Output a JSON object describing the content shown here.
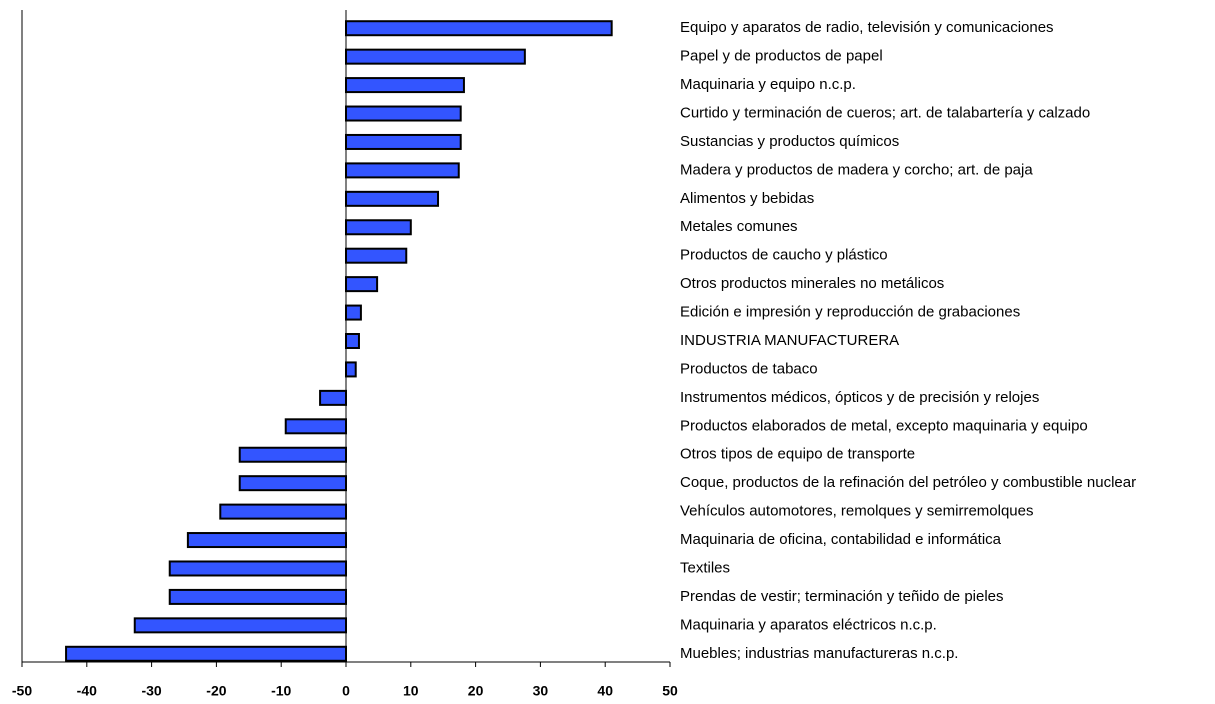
{
  "chart_data": {
    "type": "barh",
    "categories": [
      "Equipo y aparatos de radio, televisión y comunicaciones",
      "Papel y de productos de papel",
      "Maquinaria y equipo n.c.p.",
      "Curtido y terminación de cueros; art. de talabartería y calzado",
      "Sustancias y productos químicos",
      "Madera y productos de madera y corcho; art. de paja",
      "Alimentos y bebidas",
      "Metales comunes",
      "Productos de caucho y plástico",
      "Otros productos minerales no metálicos",
      "Edición e impresión y reproducción de grabaciones",
      "INDUSTRIA MANUFACTURERA",
      "Productos de tabaco",
      "Instrumentos médicos, ópticos y de precisión y relojes",
      "Productos elaborados de metal, excepto maquinaria y equipo",
      "Otros tipos de equipo de transporte",
      "Coque, productos de la refinación del petróleo y combustible nuclear",
      "Vehículos automotores, remolques y semirremolques",
      "Maquinaria de oficina, contabilidad e informática",
      "Textiles",
      "Prendas de vestir; terminación y teñido de pieles",
      "Maquinaria y aparatos eléctricos n.c.p.",
      "Muebles; industrias manufactureras n.c.p."
    ],
    "values": [
      41.0,
      27.6,
      18.2,
      17.7,
      17.7,
      17.4,
      14.2,
      10.0,
      9.3,
      4.8,
      2.3,
      2.0,
      1.5,
      -4.0,
      -9.3,
      -16.4,
      -16.4,
      -19.4,
      -24.4,
      -27.2,
      -27.2,
      -32.6,
      -43.2
    ],
    "color": "#3355ff",
    "xlim": [
      -50,
      50
    ],
    "xticks": [
      -50,
      -40,
      -30,
      -20,
      -10,
      0,
      10,
      20,
      30,
      40,
      50
    ]
  }
}
